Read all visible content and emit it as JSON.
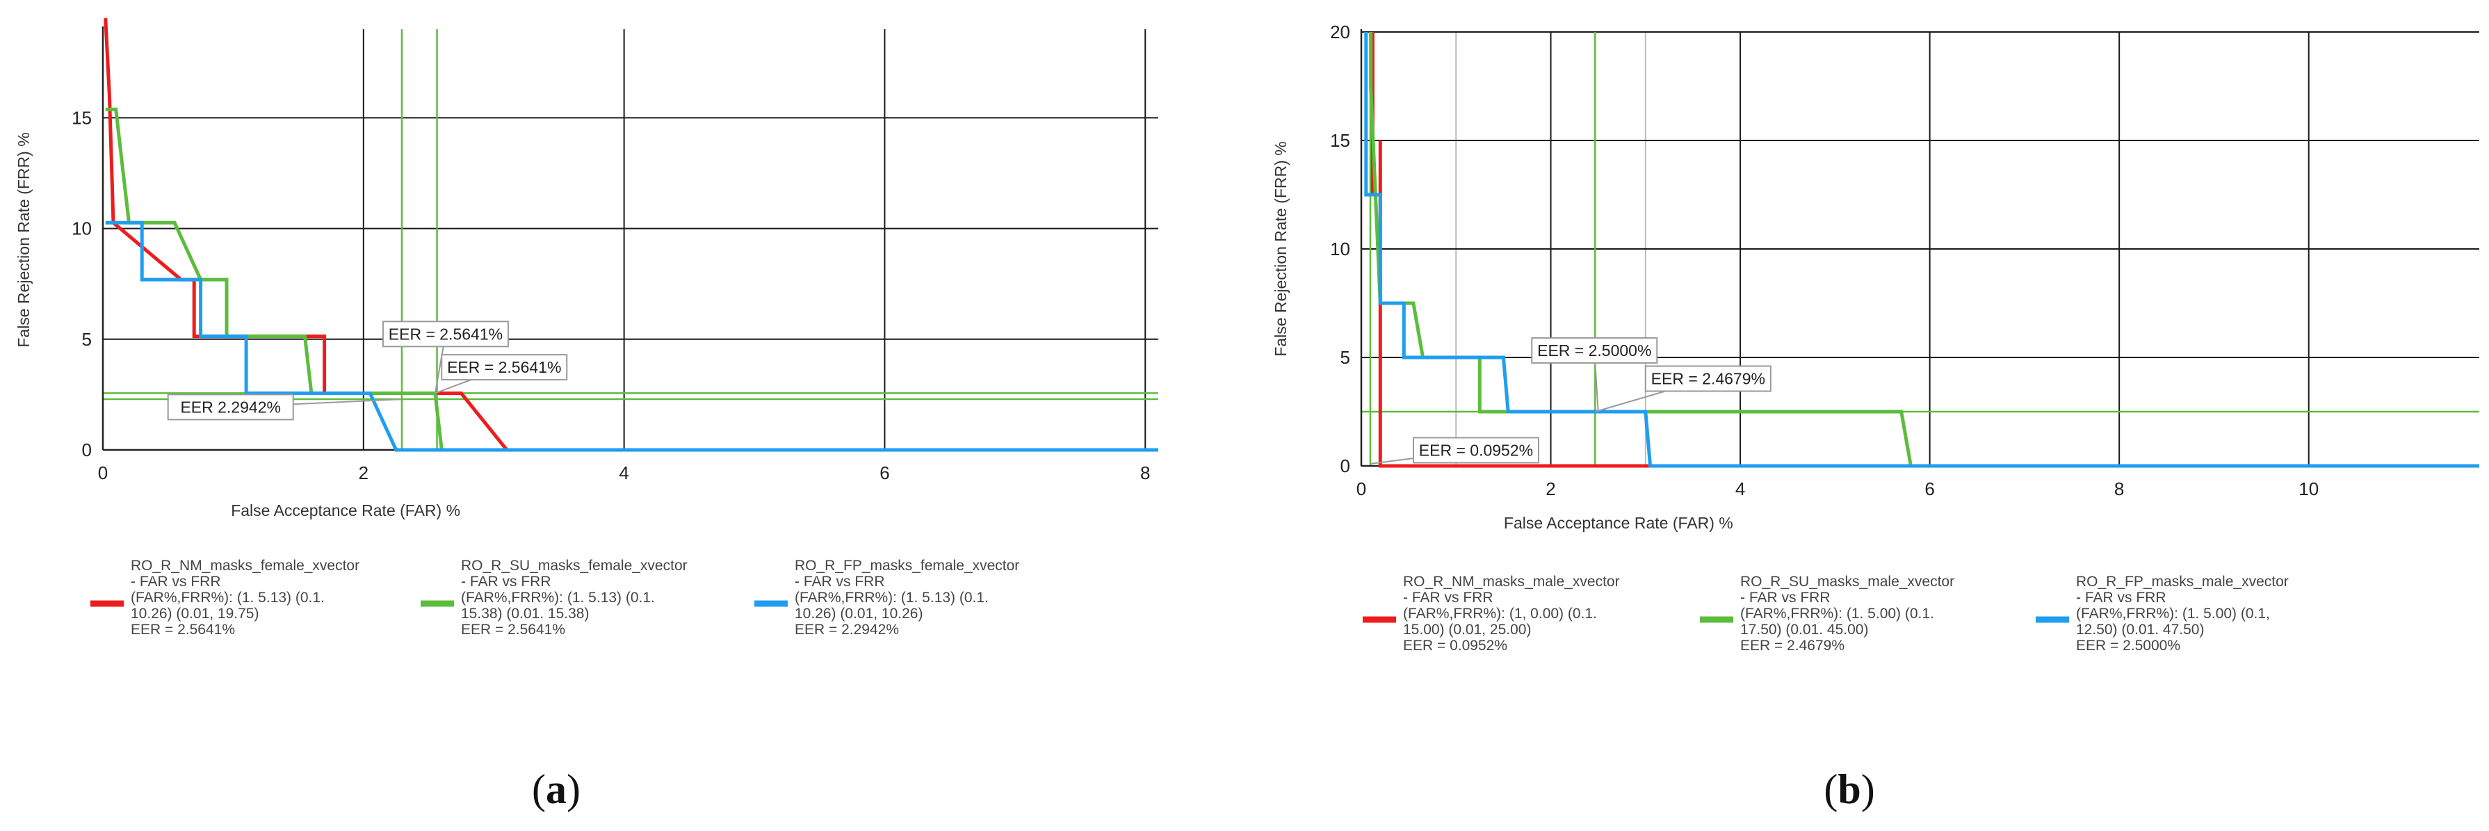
{
  "chart_data": [
    {
      "type": "line",
      "panel_label": {
        "open": "(",
        "letter": "a",
        "close": ")"
      },
      "xlabel": "False Acceptance Rate (FAR) %",
      "ylabel": "False Rejection Rate (FRR) %",
      "xlim": [
        0,
        8.1
      ],
      "ylim": [
        0,
        19
      ],
      "xticks": [
        0,
        2,
        4,
        6,
        8
      ],
      "yticks": [
        0,
        5,
        10,
        15
      ],
      "minor_xgrid": [],
      "grid": true,
      "colors": {
        "red": "#ee1c1c",
        "green": "#5cbd3c",
        "blue": "#1f9ef0",
        "grid": "#1a1a1a",
        "minor_grid": "#bbbbbb"
      },
      "eer_lines": [
        {
          "orient": "v",
          "value": 2.2942,
          "color": "#5cbd3c"
        },
        {
          "orient": "v",
          "value": 2.5641,
          "color": "#5cbd3c"
        },
        {
          "orient": "h",
          "value": 2.2942,
          "color": "#5cbd3c"
        },
        {
          "orient": "h",
          "value": 2.5641,
          "color": "#5cbd3c"
        }
      ],
      "series": [
        {
          "color": "#ee1c1c",
          "legend": [
            "RO_R_NM_masks_female_xvector",
            "- FAR vs FRR",
            "(FAR%,FRR%): (1. 5.13) (0.1.",
            "10.26) (0.01, 19.75)",
            "EER = 2.5641%"
          ],
          "points": [
            [
              0.02,
              19.5
            ],
            [
              0.05,
              16
            ],
            [
              0.08,
              10.26
            ],
            [
              0.08,
              10.26
            ],
            [
              0.6,
              7.69
            ],
            [
              0.7,
              7.69
            ],
            [
              0.7,
              5.13
            ],
            [
              1.7,
              5.13
            ],
            [
              1.7,
              2.56
            ],
            [
              2.75,
              2.56
            ],
            [
              3.1,
              0
            ],
            [
              8.1,
              0
            ]
          ]
        },
        {
          "color": "#5cbd3c",
          "legend": [
            "RO_R_SU_masks_female_xvector",
            "- FAR vs FRR",
            "(FAR%,FRR%): (1. 5.13) (0.1.",
            "15.38) (0.01. 15.38)",
            "EER = 2.5641%"
          ],
          "points": [
            [
              0.02,
              15.38
            ],
            [
              0.1,
              15.38
            ],
            [
              0.15,
              12.8
            ],
            [
              0.2,
              10.26
            ],
            [
              0.55,
              10.26
            ],
            [
              0.75,
              7.69
            ],
            [
              0.95,
              7.69
            ],
            [
              0.95,
              5.13
            ],
            [
              1.55,
              5.13
            ],
            [
              1.6,
              2.56
            ],
            [
              2.55,
              2.56
            ],
            [
              2.6,
              0
            ],
            [
              8.1,
              0
            ]
          ]
        },
        {
          "color": "#1f9ef0",
          "legend": [
            "RO_R_FP_masks_female_xvector",
            "- FAR vs FRR",
            "(FAR%,FRR%): (1. 5.13) (0.1.",
            "10.26) (0.01, 10.26)",
            "EER = 2.2942%"
          ],
          "points": [
            [
              0.02,
              10.26
            ],
            [
              0.3,
              10.26
            ],
            [
              0.3,
              7.69
            ],
            [
              0.75,
              7.69
            ],
            [
              0.75,
              5.13
            ],
            [
              1.1,
              5.13
            ],
            [
              1.1,
              2.56
            ],
            [
              2.05,
              2.56
            ],
            [
              2.25,
              0
            ],
            [
              8.1,
              0
            ]
          ]
        }
      ],
      "callouts": [
        {
          "text": "EER = 2.5641%",
          "x": 2.15,
          "y": 5.8,
          "tx": 2.55,
          "ty": 2.56
        },
        {
          "text": "EER = 2.5641%",
          "x": 2.6,
          "y": 4.3,
          "tx": 2.55,
          "ty": 2.56
        },
        {
          "text": "EER   2.2942%",
          "x": 0.5,
          "y": 2.5,
          "tx": 2.29,
          "ty": 2.29
        }
      ]
    },
    {
      "type": "line",
      "panel_label": {
        "open": "(",
        "letter": "b",
        "close": ")"
      },
      "xlabel": "False Acceptance Rate (FAR) %",
      "ylabel": "False Rejection Rate (FRR) %",
      "xlim": [
        0,
        11.8
      ],
      "ylim": [
        0,
        20
      ],
      "xticks": [
        0,
        2,
        4,
        6,
        8,
        10
      ],
      "yticks": [
        0,
        5,
        10,
        15,
        20
      ],
      "minor_xgrid": [
        1,
        3
      ],
      "grid": true,
      "colors": {
        "red": "#ee1c1c",
        "green": "#5cbd3c",
        "blue": "#1f9ef0",
        "grid": "#1a1a1a",
        "minor_grid": "#bbbbbb"
      },
      "eer_lines": [
        {
          "orient": "v",
          "value": 0.0952,
          "color": "#5cbd3c"
        },
        {
          "orient": "v",
          "value": 2.4679,
          "color": "#5cbd3c"
        },
        {
          "orient": "h",
          "value": 2.5,
          "color": "#5cbd3c"
        }
      ],
      "series": [
        {
          "color": "#ee1c1c",
          "legend": [
            "RO_R_NM_masks_male_xvector",
            "- FAR vs FRR",
            "(FAR%,FRR%): (1, 0.00) (0.1.",
            "15.00) (0.01, 25.00)",
            "EER = 0.0952%"
          ],
          "points": [
            [
              0.12,
              20
            ],
            [
              0.12,
              12.5
            ],
            [
              0.2,
              12.5
            ],
            [
              0.2,
              15
            ],
            [
              0.2,
              7.5
            ],
            [
              0.2,
              0
            ],
            [
              11.8,
              0
            ]
          ]
        },
        {
          "color": "#5cbd3c",
          "legend": [
            "RO_R_SU_masks_male_xvector",
            "- FAR vs FRR",
            "(FAR%,FRR%): (1. 5.00) (0.1.",
            "17.50) (0.01. 45.00)",
            "EER = 2.4679%"
          ],
          "points": [
            [
              0.1,
              20
            ],
            [
              0.1,
              17.5
            ],
            [
              0.15,
              12.5
            ],
            [
              0.2,
              7.5
            ],
            [
              0.55,
              7.5
            ],
            [
              0.65,
              5
            ],
            [
              1.25,
              5
            ],
            [
              1.25,
              2.5
            ],
            [
              5.7,
              2.5
            ],
            [
              5.8,
              0
            ],
            [
              11.8,
              0
            ]
          ]
        },
        {
          "color": "#1f9ef0",
          "legend": [
            "RO_R_FP_masks_male_xvector",
            "- FAR vs FRR",
            "(FAR%,FRR%): (1. 5.00) (0.1,",
            "12.50) (0.01. 47.50)",
            "EER = 2.5000%"
          ],
          "points": [
            [
              0.05,
              20
            ],
            [
              0.05,
              12.5
            ],
            [
              0.2,
              12.5
            ],
            [
              0.2,
              7.5
            ],
            [
              0.45,
              7.5
            ],
            [
              0.45,
              5
            ],
            [
              1.5,
              5
            ],
            [
              1.55,
              2.5
            ],
            [
              3.0,
              2.5
            ],
            [
              3.05,
              0
            ],
            [
              11.8,
              0
            ]
          ]
        }
      ],
      "callouts": [
        {
          "text": "EER = 2.5000%",
          "x": 1.8,
          "y": 5.9,
          "tx": 2.5,
          "ty": 2.5
        },
        {
          "text": "EER = 2.4679%",
          "x": 3.0,
          "y": 4.6,
          "tx": 2.47,
          "ty": 2.5
        },
        {
          "text": "EER = 0.0952%",
          "x": 0.55,
          "y": 1.3,
          "tx": 0.1,
          "ty": 0.1
        }
      ]
    }
  ]
}
